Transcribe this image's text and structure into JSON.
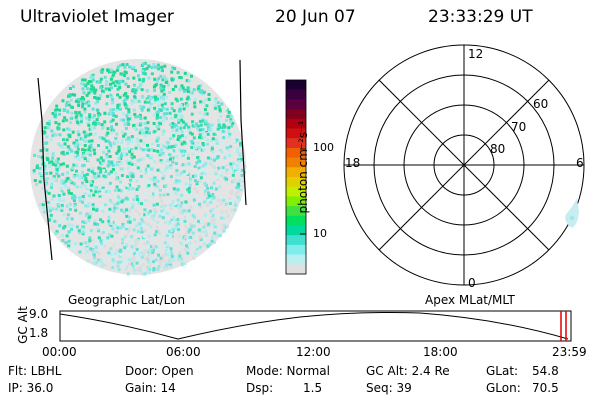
{
  "header": {
    "instrument": "Ultraviolet Imager",
    "date": "20 Jun 07",
    "time": "23:33:29 UT"
  },
  "colorbar": {
    "unit_label": "photon cm⁻²s⁻¹",
    "ticks": [
      "100",
      "10"
    ],
    "colors": [
      "#1a0030",
      "#3a0040",
      "#5a0040",
      "#800020",
      "#b00010",
      "#d01010",
      "#e03020",
      "#f06000",
      "#f08000",
      "#f0b000",
      "#e0d000",
      "#c0f000",
      "#80f000",
      "#40e040",
      "#00e060",
      "#00d8a0",
      "#40e0d0",
      "#80ecec",
      "#b8f0f0",
      "#e0e0e0"
    ]
  },
  "left_panel": {
    "caption": "Geographic Lat/Lon",
    "dots": {
      "palette": [
        "#dcdcdc",
        "#cfeeee",
        "#b0ecec",
        "#8fe8e8",
        "#60e0d8",
        "#30dcb0",
        "#20d890"
      ]
    }
  },
  "right_panel": {
    "caption": "Apex MLat/MLT",
    "mlt_labels": {
      "top": "12",
      "left": "18",
      "right": "6",
      "bottom": "0"
    },
    "lat_labels": [
      "60",
      "70",
      "80"
    ]
  },
  "altitude_plot": {
    "ylabel": "GC Alt",
    "ytick_top": "9.0",
    "ytick_bottom": "1.8",
    "xticks": [
      "00:00",
      "06:00",
      "12:00",
      "18:00",
      "23:59"
    ]
  },
  "status": {
    "flt": "Flt: LBHL",
    "ip": "IP: 36.0",
    "door": "Door: Open",
    "gain": "Gain: 14",
    "mode": "Mode: Normal",
    "dsp_label": "Dsp:",
    "dsp_value": "1.5",
    "gc_alt": "GC Alt: 2.4 Re",
    "seq": "Seq: 39",
    "glat_label": "GLat:",
    "glat_value": "54.8",
    "glon_label": "GLon:",
    "glon_value": "70.5"
  }
}
